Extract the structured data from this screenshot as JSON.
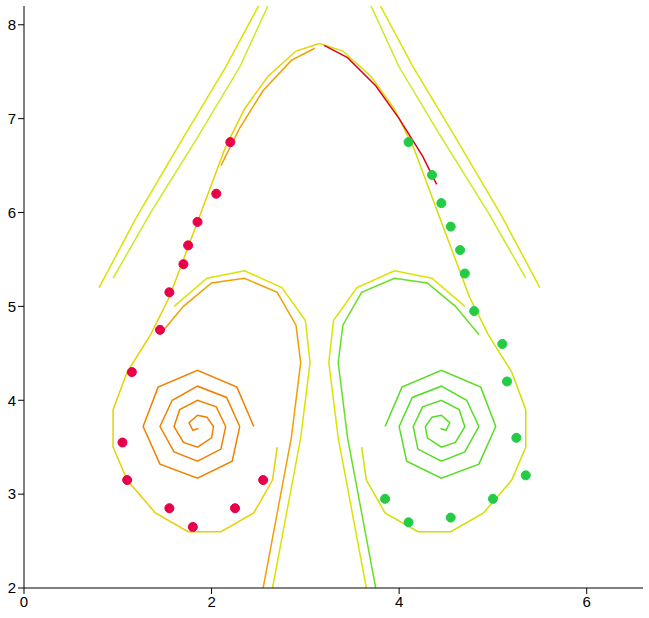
{
  "chart_data": {
    "type": "contour",
    "xlim": [
      0,
      6.6
    ],
    "ylim": [
      2,
      8.2
    ],
    "xticks": [
      0,
      2,
      4,
      6
    ],
    "yticks": [
      2,
      3,
      4,
      5,
      6,
      7,
      8
    ],
    "grid": false,
    "series": [
      {
        "type": "line",
        "color": "#d8e400",
        "x": [
          0.8,
          1.2,
          1.7,
          2.15,
          2.5
        ],
        "values": [
          5.2,
          5.95,
          6.8,
          7.55,
          8.2
        ]
      },
      {
        "type": "line",
        "color": "#c8ec20",
        "x": [
          0.95,
          1.35,
          1.85,
          2.3,
          2.6
        ],
        "values": [
          5.3,
          6.0,
          6.8,
          7.55,
          8.2
        ]
      },
      {
        "type": "line",
        "color": "#d8e400",
        "x": [
          5.5,
          5.1,
          4.6,
          4.15,
          3.8
        ],
        "values": [
          5.2,
          5.95,
          6.8,
          7.55,
          8.2
        ]
      },
      {
        "type": "line",
        "color": "#c8ec20",
        "x": [
          5.35,
          4.95,
          4.45,
          4.0,
          3.7
        ],
        "values": [
          5.3,
          6.0,
          6.8,
          7.55,
          8.2
        ]
      },
      {
        "type": "line",
        "color": "#e8d000",
        "x": [
          3.15,
          2.9,
          2.6,
          2.35,
          2.15,
          2.0,
          1.85,
          1.7,
          1.55,
          1.35,
          1.1,
          0.95,
          0.95,
          1.1,
          1.4,
          1.75,
          2.1,
          2.45,
          2.65,
          2.7
        ],
        "values": [
          7.8,
          7.72,
          7.45,
          7.1,
          6.7,
          6.3,
          5.9,
          5.5,
          5.1,
          4.7,
          4.3,
          3.9,
          3.5,
          3.15,
          2.8,
          2.6,
          2.6,
          2.8,
          3.15,
          3.5
        ]
      },
      {
        "type": "line",
        "color": "#d0e000",
        "x": [
          3.15,
          3.4,
          3.7,
          3.95,
          4.15,
          4.3,
          4.45,
          4.6,
          4.75,
          4.95,
          5.2,
          5.35,
          5.35,
          5.2,
          4.9,
          4.55,
          4.2,
          3.85,
          3.65,
          3.6
        ],
        "values": [
          7.8,
          7.72,
          7.45,
          7.1,
          6.7,
          6.3,
          5.9,
          5.5,
          5.1,
          4.7,
          4.3,
          3.9,
          3.5,
          3.15,
          2.8,
          2.6,
          2.6,
          2.8,
          3.15,
          3.5
        ]
      },
      {
        "type": "line",
        "color": "#f0a000",
        "x": [
          3.1,
          2.85,
          2.55,
          2.3,
          2.1
        ],
        "values": [
          7.75,
          7.62,
          7.3,
          6.9,
          6.5
        ]
      },
      {
        "type": "line",
        "color": "#e00020",
        "x": [
          3.2,
          3.45,
          3.75,
          4.0,
          4.25,
          4.4
        ],
        "values": [
          7.78,
          7.65,
          7.35,
          7.0,
          6.6,
          6.3
        ]
      },
      {
        "type": "line",
        "color": "#f0a000",
        "x": [
          2.55,
          2.7,
          2.85,
          2.95,
          2.9,
          2.7,
          2.35,
          2.0,
          1.7,
          1.45
        ],
        "values": [
          2.0,
          2.8,
          3.6,
          4.4,
          4.8,
          5.15,
          5.3,
          5.25,
          5.0,
          4.7
        ]
      },
      {
        "type": "line",
        "color": "#d8e400",
        "x": [
          2.65,
          2.8,
          2.95,
          3.05,
          3.0,
          2.75,
          2.35,
          1.95,
          1.6
        ],
        "values": [
          2.0,
          2.8,
          3.6,
          4.4,
          4.85,
          5.2,
          5.38,
          5.3,
          5.0
        ]
      },
      {
        "type": "line",
        "color": "#66e022",
        "x": [
          3.75,
          3.6,
          3.45,
          3.35,
          3.4,
          3.6,
          3.95,
          4.3,
          4.6,
          4.85
        ],
        "values": [
          2.0,
          2.8,
          3.6,
          4.4,
          4.8,
          5.15,
          5.3,
          5.25,
          5.0,
          4.7
        ]
      },
      {
        "type": "line",
        "color": "#d8e400",
        "x": [
          3.65,
          3.5,
          3.35,
          3.25,
          3.3,
          3.55,
          3.95,
          4.35,
          4.7
        ],
        "values": [
          2.0,
          2.8,
          3.6,
          4.4,
          4.85,
          5.2,
          5.38,
          5.3,
          5.0
        ]
      },
      {
        "type": "line",
        "color": "#f08000",
        "x": [
          2.45,
          2.27,
          1.85,
          1.43,
          1.27,
          1.45,
          1.85,
          2.22,
          2.3,
          2.16,
          1.85,
          1.58,
          1.45,
          1.6,
          1.85,
          2.1,
          2.15,
          2.05,
          1.85,
          1.66,
          1.6,
          1.7,
          1.85,
          2.0,
          2.02,
          1.95,
          1.85,
          1.76,
          1.8,
          1.86
        ],
        "values": [
          3.72,
          4.14,
          4.32,
          4.14,
          3.72,
          3.32,
          3.17,
          3.35,
          3.72,
          4.03,
          4.15,
          4.0,
          3.72,
          3.45,
          3.35,
          3.48,
          3.72,
          3.93,
          4.0,
          3.9,
          3.72,
          3.55,
          3.5,
          3.6,
          3.72,
          3.82,
          3.84,
          3.76,
          3.68,
          3.7
        ]
      },
      {
        "type": "line",
        "color": "#55dd22",
        "x": [
          3.85,
          4.03,
          4.45,
          4.87,
          5.03,
          4.85,
          4.45,
          4.08,
          4.0,
          4.14,
          4.45,
          4.72,
          4.85,
          4.7,
          4.45,
          4.2,
          4.15,
          4.25,
          4.45,
          4.64,
          4.7,
          4.6,
          4.45,
          4.3,
          4.28,
          4.35,
          4.45,
          4.54,
          4.5,
          4.44
        ],
        "values": [
          3.72,
          4.14,
          4.32,
          4.14,
          3.72,
          3.32,
          3.17,
          3.35,
          3.72,
          4.03,
          4.15,
          4.0,
          3.72,
          3.45,
          3.35,
          3.48,
          3.72,
          3.93,
          4.0,
          3.9,
          3.72,
          3.55,
          3.5,
          3.6,
          3.72,
          3.82,
          3.84,
          3.76,
          3.68,
          3.7
        ]
      },
      {
        "type": "scatter",
        "marker": "circle",
        "color": "#e8004a",
        "x": [
          2.2,
          2.05,
          1.85,
          1.75,
          1.7,
          1.55,
          1.45,
          1.15,
          1.05,
          1.1,
          1.55,
          1.8,
          2.25,
          2.55
        ],
        "values": [
          6.75,
          6.2,
          5.9,
          5.65,
          5.45,
          5.15,
          4.75,
          4.3,
          3.55,
          3.15,
          2.85,
          2.65,
          2.85,
          3.15
        ]
      },
      {
        "type": "scatter",
        "marker": "circle",
        "color": "#22cc44",
        "x": [
          4.1,
          4.35,
          4.45,
          4.55,
          4.65,
          4.7,
          4.8,
          5.1,
          5.15,
          5.25,
          5.35,
          5.0,
          4.55,
          4.1,
          3.85
        ],
        "values": [
          6.75,
          6.4,
          6.1,
          5.85,
          5.6,
          5.35,
          4.95,
          4.6,
          4.2,
          3.6,
          3.2,
          2.95,
          2.75,
          2.7,
          2.95
        ]
      }
    ]
  }
}
